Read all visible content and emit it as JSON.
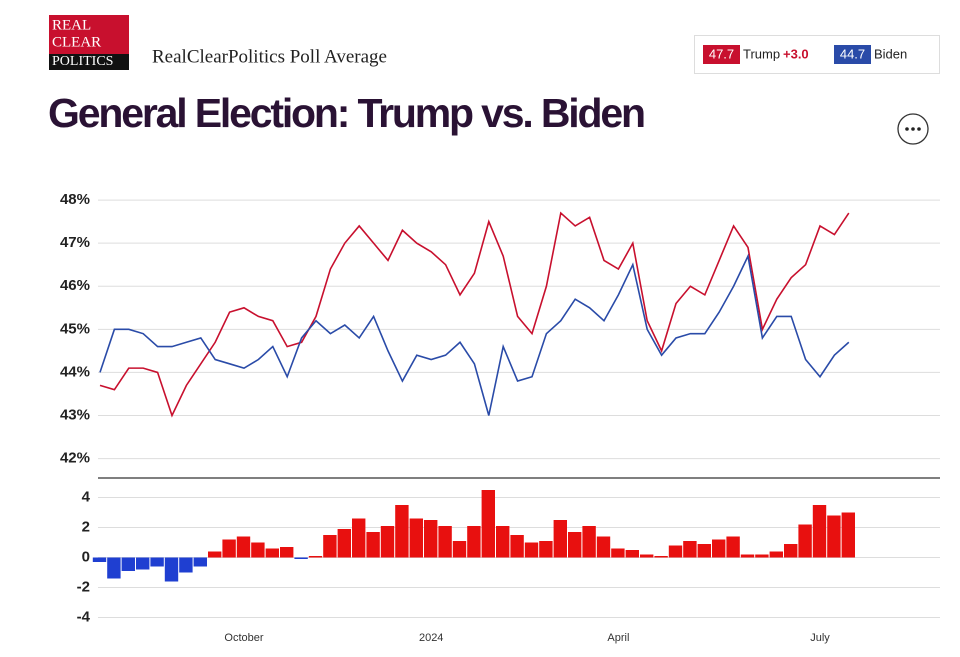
{
  "header": {
    "logo": [
      "REAL",
      "CLEAR",
      "POLITICS"
    ],
    "subtitle": "RealClearPolitics Poll Average",
    "title": "General Election: Trump vs. Biden",
    "latest": [
      {
        "value": 47.7
      },
      {
        "value": 44.7
      }
    ],
    "spread": {
      "value": 3.0,
      "label": "+3.0"
    }
  },
  "chart_data": [
    {
      "type": "line",
      "ylim": [
        41.55,
        48.35
      ],
      "yticks": [
        {
          "value": 48,
          "label": "48%"
        },
        {
          "value": 47,
          "label": "47%"
        },
        {
          "value": 46,
          "label": "46%"
        },
        {
          "value": 45,
          "label": "45%"
        },
        {
          "value": 44,
          "label": "44%"
        },
        {
          "value": 43,
          "label": "43%"
        },
        {
          "value": 42,
          "label": "42%"
        }
      ],
      "grid": true,
      "series": [
        {
          "name": "Trump",
          "color": "#c8102e",
          "values": [
            43.7,
            43.6,
            44.1,
            44.1,
            44.0,
            43.0,
            43.7,
            44.2,
            44.7,
            45.4,
            45.5,
            45.3,
            45.2,
            44.6,
            44.7,
            45.3,
            46.4,
            47.0,
            47.4,
            47.0,
            46.6,
            47.3,
            47.0,
            46.8,
            46.5,
            45.8,
            46.3,
            47.5,
            46.7,
            45.3,
            44.9,
            46.0,
            47.7,
            47.4,
            47.6,
            46.6,
            46.4,
            47.0,
            45.2,
            44.5,
            45.6,
            46.0,
            45.8,
            46.6,
            47.4,
            46.9,
            45.0,
            45.7,
            46.2,
            46.5,
            47.4,
            47.2,
            47.7
          ]
        },
        {
          "name": "Biden",
          "color": "#2a4ba8",
          "values": [
            44.0,
            45.0,
            45.0,
            44.9,
            44.6,
            44.6,
            44.7,
            44.8,
            44.3,
            44.2,
            44.1,
            44.3,
            44.6,
            43.9,
            44.8,
            45.2,
            44.9,
            45.1,
            44.8,
            45.3,
            44.5,
            43.8,
            44.4,
            44.3,
            44.4,
            44.7,
            44.2,
            43.0,
            44.6,
            43.8,
            43.9,
            44.9,
            45.2,
            45.7,
            45.5,
            45.2,
            45.8,
            46.5,
            45.0,
            44.4,
            44.8,
            44.9,
            44.9,
            45.4,
            46.0,
            46.7,
            44.8,
            45.3,
            45.3,
            44.3,
            43.9,
            44.4,
            44.7
          ]
        }
      ]
    },
    {
      "type": "bar",
      "ylim": [
        -4.9,
        5.3
      ],
      "yticks": [
        4,
        2,
        0,
        -2,
        -4
      ],
      "grid": true,
      "positive_color": "#e8100f",
      "negative_color": "#1f3fd1",
      "categories": [
        null,
        null,
        null,
        null,
        null,
        null,
        null,
        null,
        null,
        null,
        "October",
        null,
        null,
        null,
        null,
        null,
        null,
        null,
        null,
        null,
        null,
        null,
        null,
        "2024",
        null,
        null,
        null,
        null,
        null,
        null,
        null,
        null,
        null,
        null,
        null,
        null,
        "April",
        null,
        null,
        null,
        null,
        null,
        null,
        null,
        null,
        null,
        null,
        null,
        null,
        null,
        "July",
        null,
        null
      ],
      "values": [
        -0.3,
        -1.4,
        -0.9,
        -0.8,
        -0.6,
        -1.6,
        -1.0,
        -0.6,
        0.4,
        1.2,
        1.4,
        1.0,
        0.6,
        0.7,
        -0.1,
        0.1,
        1.5,
        1.9,
        2.6,
        1.7,
        2.1,
        3.5,
        2.6,
        2.5,
        2.1,
        1.1,
        2.1,
        4.5,
        2.1,
        1.5,
        1.0,
        1.1,
        2.5,
        1.7,
        2.1,
        1.4,
        0.6,
        0.5,
        0.2,
        0.1,
        0.8,
        1.1,
        0.9,
        1.2,
        1.4,
        0.2,
        0.2,
        0.4,
        0.9,
        2.2,
        3.5,
        2.8,
        3.0
      ]
    }
  ]
}
